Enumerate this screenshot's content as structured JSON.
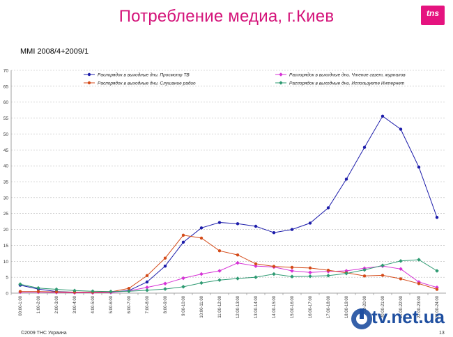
{
  "header": {
    "title": "Потребление медиа, г.Киев",
    "subtitle": "MMI 2008/4+2009/1",
    "logo_text": "tns"
  },
  "footer": {
    "copyright": "©2009 ТНС Украина",
    "page_number": "13"
  },
  "watermark": {
    "text": "tv.net.ua"
  },
  "colors": {
    "title": "#d4147a",
    "tv": "#1c1caa",
    "press": "#d633d6",
    "radio": "#d44a18",
    "internet": "#2e9a72"
  },
  "chart_data": {
    "type": "line",
    "ylim": [
      0,
      70
    ],
    "yticks": [
      0,
      5,
      10,
      15,
      20,
      25,
      30,
      35,
      40,
      45,
      50,
      55,
      60,
      65,
      70
    ],
    "grid": "horizontal dashed",
    "legend_placement": "top",
    "categories": [
      "00:00-1:00",
      "1:00-2:00",
      "2:00-3:00",
      "3:00-4:00",
      "4:00-5:00",
      "5:00-6:00",
      "6:00-7:00",
      "7:00-8:00",
      "8:00-9:00",
      "9:00-10:00",
      "10:00-11:00",
      "11:00-12:00",
      "12:00-13:00",
      "13:00-14:00",
      "14:00-15:00",
      "15:00-16:00",
      "16:00-17:00",
      "17:00-18:00",
      "18:00-19:00",
      "19:00-20:00",
      "20:00-21:00",
      "21:00-22:00",
      "22:00-23:00",
      "23:00-24:00"
    ],
    "series": [
      {
        "name": "Распорядок в выходные дни. Просмотр ТВ",
        "color": "#1c1caa",
        "values": [
          2.5,
          1.3,
          0.5,
          0.3,
          0.2,
          0.3,
          0.8,
          3.5,
          8.5,
          16,
          20.5,
          22.2,
          21.8,
          21,
          19,
          20,
          22,
          26.8,
          35.8,
          45.8,
          55.6,
          51.5,
          39.6,
          23.8
        ]
      },
      {
        "name": "Распорядок в выходные дни. Чтение газет, журналов",
        "color": "#d633d6",
        "values": [
          0.3,
          0.3,
          0.2,
          0.1,
          0.1,
          0.2,
          0.7,
          1.8,
          3,
          4.7,
          6,
          7,
          9.5,
          8.5,
          8.2,
          7,
          6.5,
          6.8,
          7,
          7.8,
          8.5,
          7.6,
          3.5,
          1.8
        ]
      },
      {
        "name": "Распорядок в выходные дни. Слушание радио",
        "color": "#d44a18",
        "values": [
          0.5,
          0.5,
          0.4,
          0.3,
          0.3,
          0.4,
          1.5,
          5.5,
          11,
          18.2,
          17.3,
          13.3,
          12,
          9.2,
          8.4,
          8.1,
          7.9,
          7.2,
          6.4,
          5.4,
          5.6,
          4.5,
          3,
          1.2
        ]
      },
      {
        "name": "Распорядок в выходные дни. Используете Интернет",
        "color": "#2e9a72",
        "values": [
          2.8,
          1.6,
          1.2,
          0.8,
          0.6,
          0.5,
          0.6,
          0.9,
          1.3,
          2,
          3.2,
          4.1,
          4.6,
          5,
          6,
          5.2,
          5.3,
          5.5,
          6.2,
          7.3,
          8.7,
          10.1,
          10.5,
          7
        ]
      }
    ]
  }
}
